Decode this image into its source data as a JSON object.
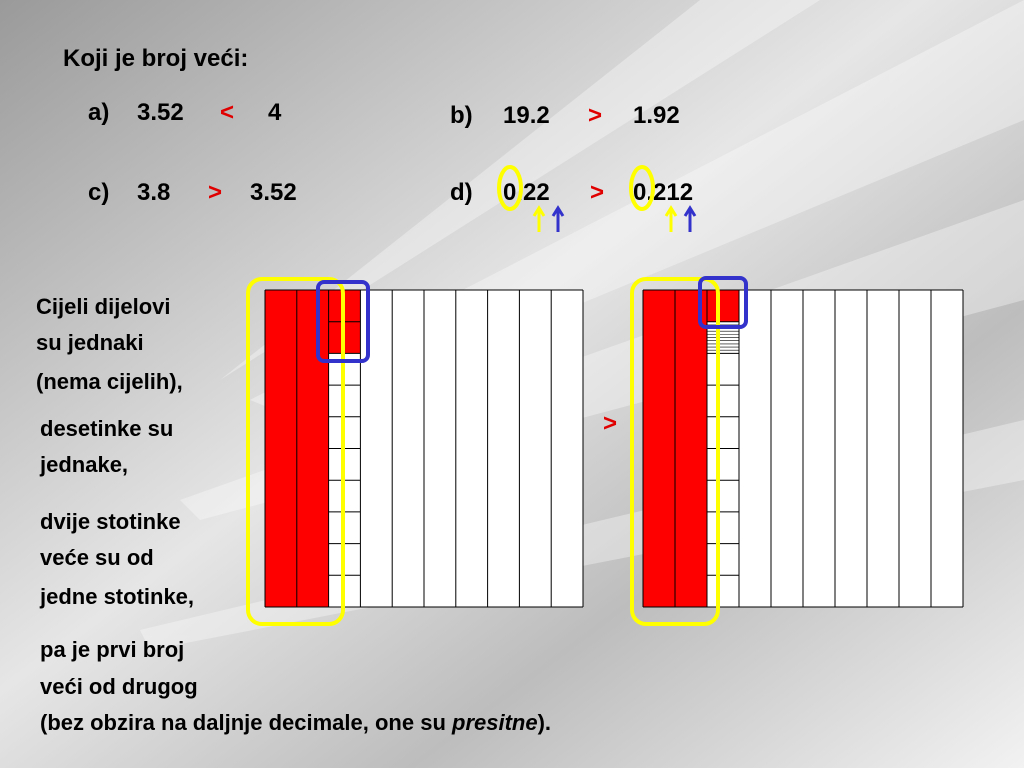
{
  "title": "Koji je broj veći:",
  "exercises": [
    {
      "label": "a)",
      "left": "3.52",
      "sign": "<",
      "right": "4"
    },
    {
      "label": "b)",
      "left": "19.2",
      "sign": ">",
      "right": "1.92"
    },
    {
      "label": "c)",
      "left": "3.8",
      "sign": ">",
      "right": "3.52"
    },
    {
      "label": "d)",
      "left": "0.22",
      "sign": ">",
      "right": "0.212"
    }
  ],
  "explanation": [
    "Cijeli dijelovi",
    "su jednaki",
    "(nema cijelih),",
    "desetinke su",
    "jednake,",
    "dvije stotinke",
    "veće su od",
    "jedne stotinke,",
    "pa je prvi broj",
    "veći od drugog"
  ],
  "last_line": {
    "before": "(bez obzira na daljnje decimale, one su ",
    "emphasis": "presitne",
    "after": ")."
  },
  "comparison_sign": ">"
}
